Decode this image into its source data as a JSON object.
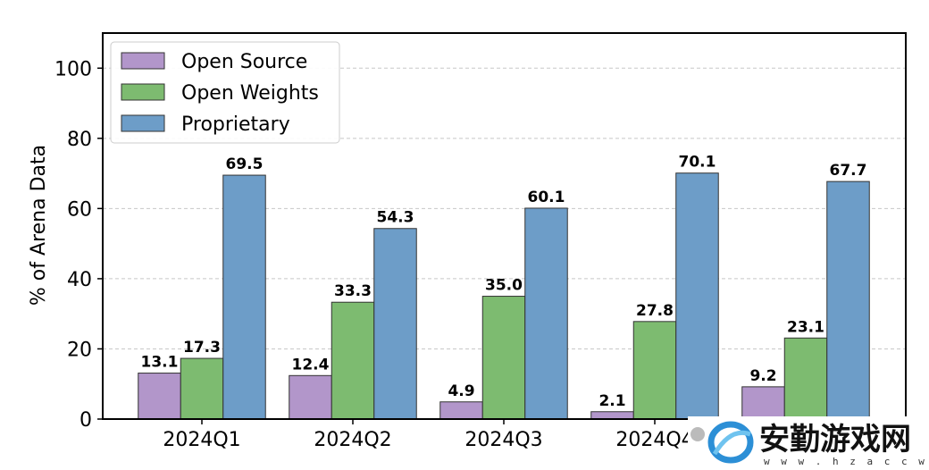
{
  "chart_data": {
    "type": "bar",
    "title": "",
    "xlabel": "",
    "ylabel": "% of Arena Data",
    "ylim": [
      0,
      110
    ],
    "yticks": [
      0,
      20,
      40,
      60,
      80,
      100
    ],
    "grid": "y-dashed",
    "legend_position": "top-left",
    "categories": [
      "2024Q1",
      "2024Q2",
      "2024Q3",
      "2024Q4",
      ""
    ],
    "series": [
      {
        "name": "Open Source",
        "color": "#b296ca",
        "values": [
          13.1,
          12.4,
          4.9,
          2.1,
          9.2
        ]
      },
      {
        "name": "Open Weights",
        "color": "#7dbb70",
        "values": [
          17.3,
          33.3,
          35.0,
          27.8,
          23.1
        ]
      },
      {
        "name": "Proprietary",
        "color": "#6d9dc8",
        "values": [
          69.5,
          54.3,
          60.1,
          70.1,
          67.7
        ]
      }
    ]
  },
  "watermark": {
    "text": "安勤游戏网",
    "subtext": "w w w . h z a c c w . c o m",
    "icon": "swirl-logo-icon"
  }
}
